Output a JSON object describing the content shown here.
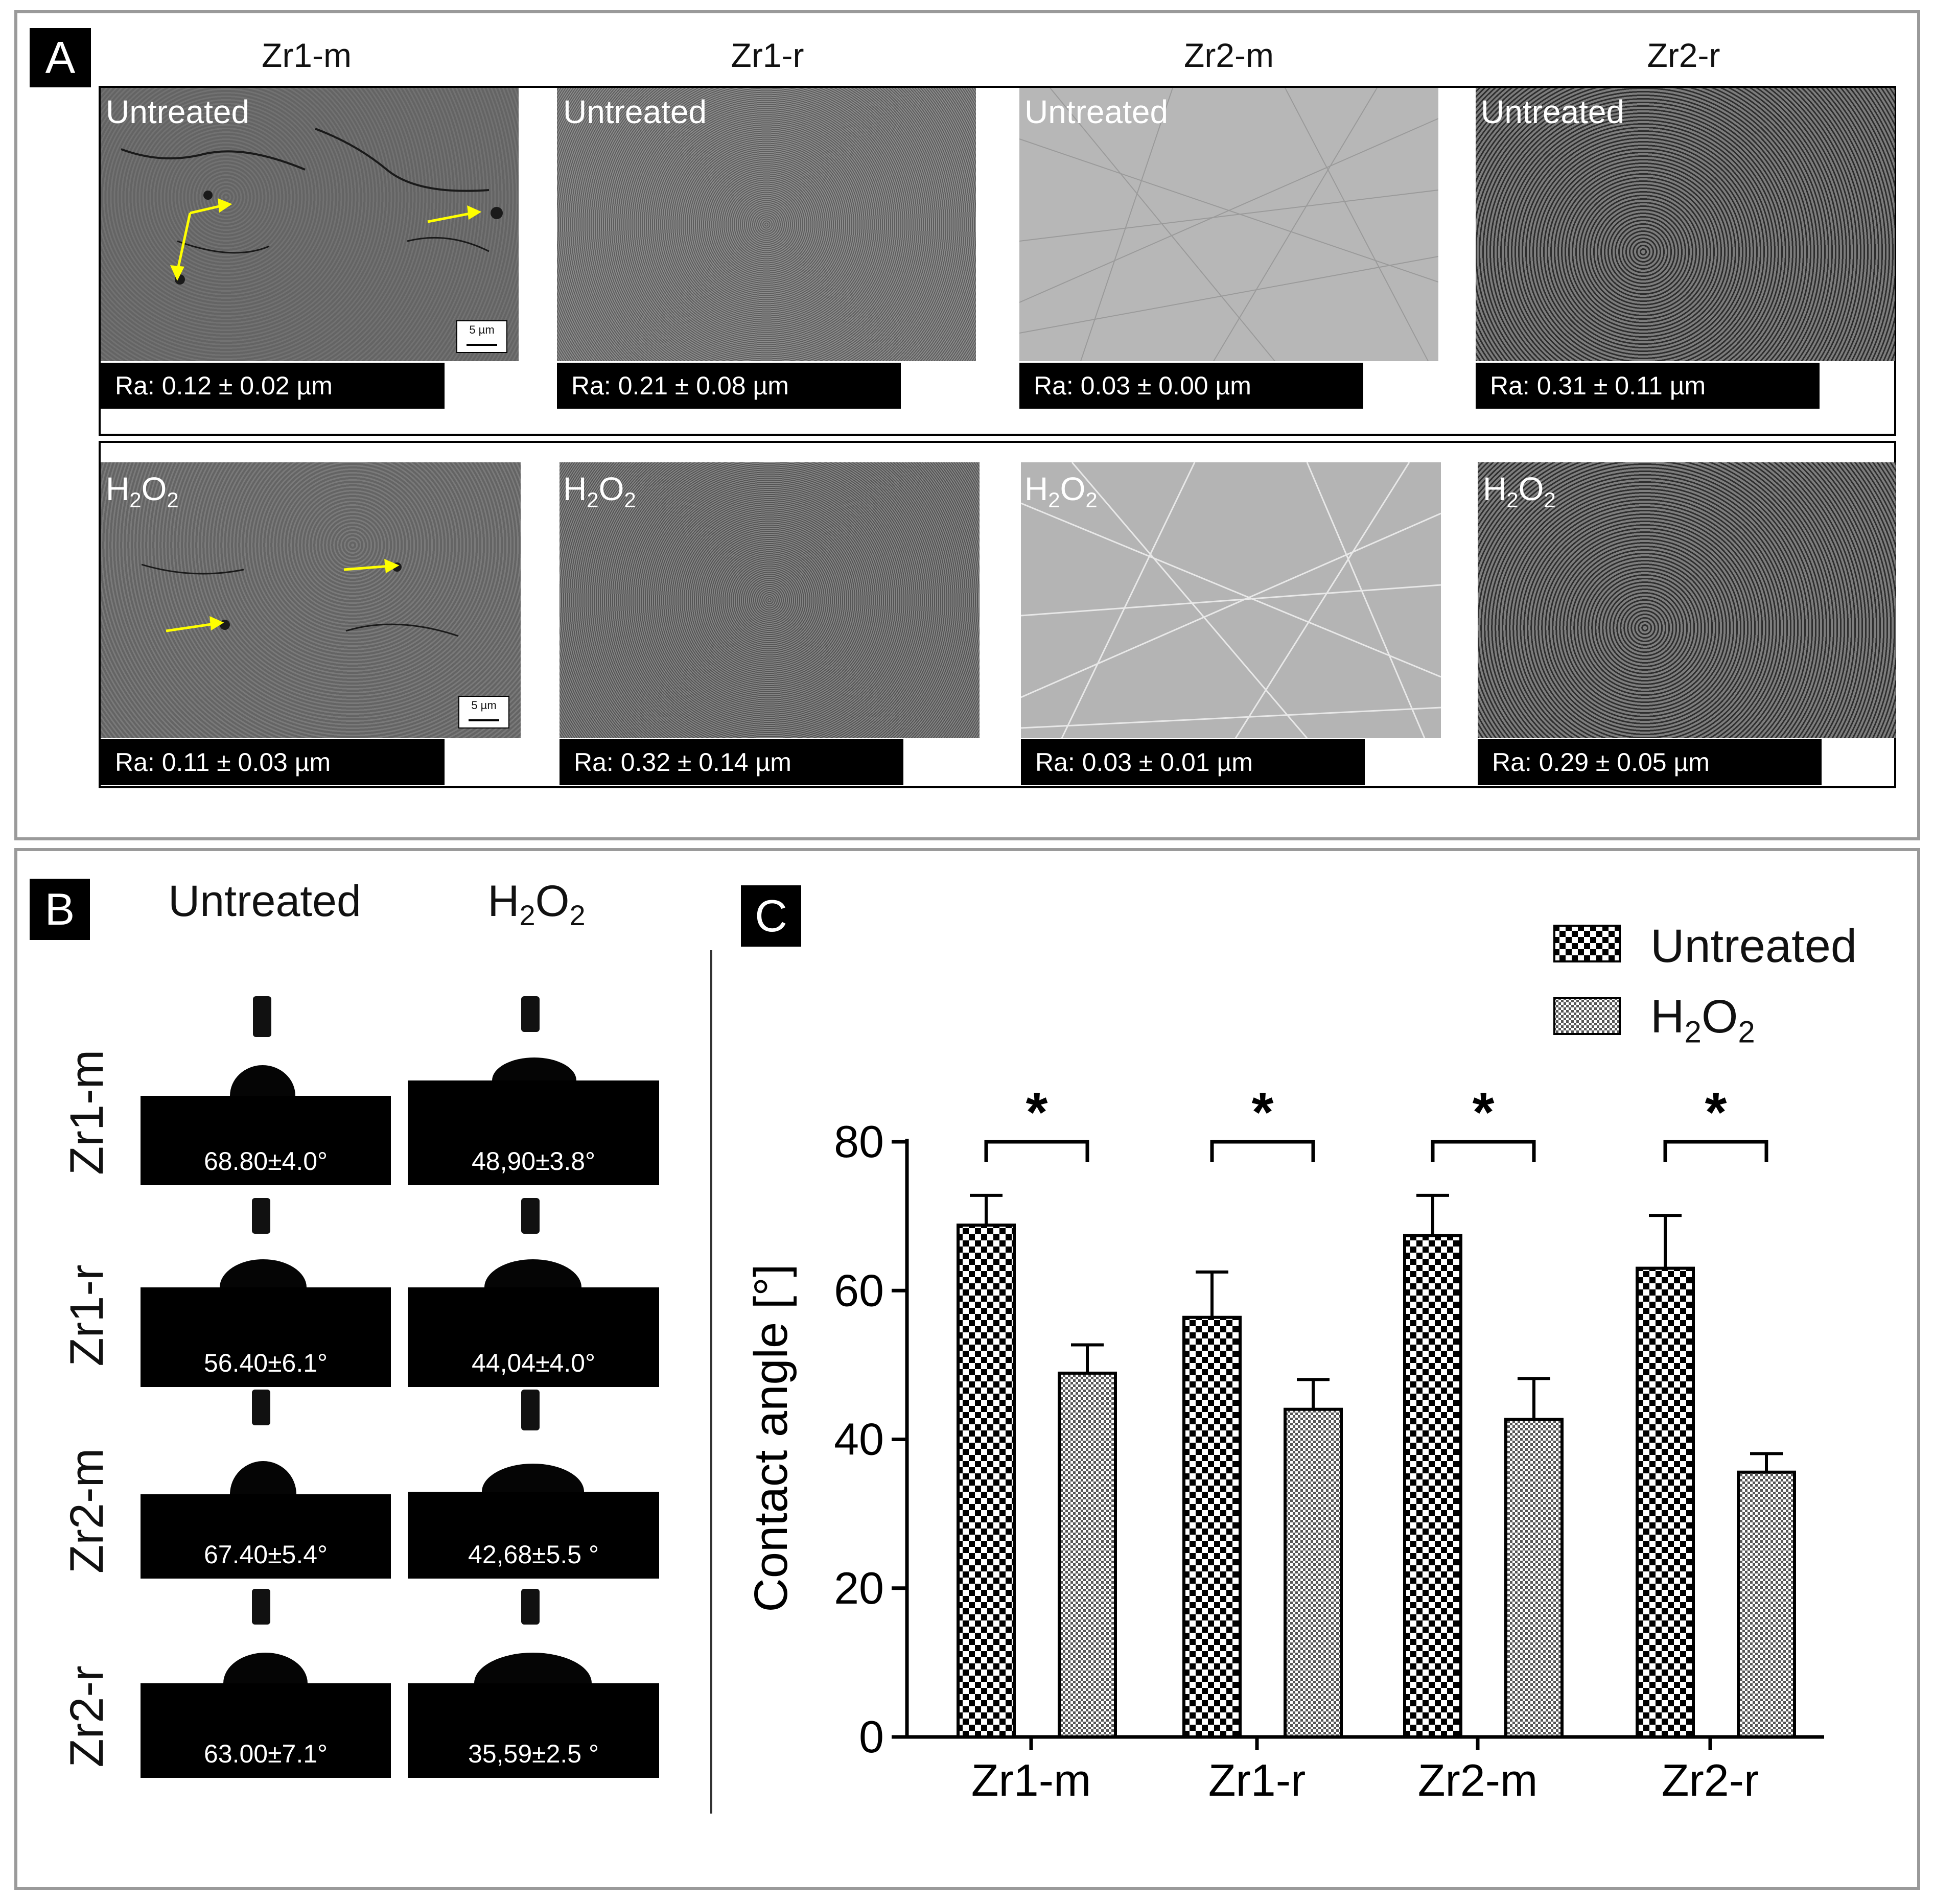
{
  "panelA": {
    "letter": "A",
    "columns": [
      "Zr1-m",
      "Zr1-r",
      "Zr2-m",
      "Zr2-r"
    ],
    "untreated_label": "Untreated",
    "h2o2_label_main": "H",
    "h2o2_sub1": "2",
    "h2o2_mid": "O",
    "h2o2_sub2": "2",
    "scale_bar": "5 µm",
    "untreated_ra": [
      "Ra: 0.12 ± 0.02 µm",
      "Ra: 0.21 ± 0.08 µm",
      "Ra: 0.03 ± 0.00 µm",
      "Ra: 0.31 ± 0.11 µm"
    ],
    "h2o2_ra": [
      "Ra: 0.11 ± 0.03 µm",
      "Ra: 0.32 ± 0.14 µm",
      "Ra: 0.03 ± 0.01 µm",
      "Ra: 0.29 ± 0.05 µm"
    ],
    "arrow_color": "#ffff00"
  },
  "panelB": {
    "letter": "B",
    "col_untreated": "Untreated",
    "col_h2o2_main": "H",
    "col_h2o2_sub1": "2",
    "col_h2o2_mid": "O",
    "col_h2o2_sub2": "2",
    "rows": [
      {
        "label": "Zr1-m",
        "untreated": "68.80±4.0°",
        "h2o2": "48,90±3.8°"
      },
      {
        "label": "Zr1-r",
        "untreated": "56.40±6.1°",
        "h2o2": "44,04±4.0°"
      },
      {
        "label": "Zr2-m",
        "untreated": "67.40±5.4°",
        "h2o2": "42,68±5.5 °"
      },
      {
        "label": "Zr2-r",
        "untreated": "63.00±7.1°",
        "h2o2": "35,59±2.5 °"
      }
    ]
  },
  "panelC": {
    "letter": "C",
    "legend_untreated": "Untreated",
    "legend_h2o2_main": "H",
    "legend_h2o2_sub1": "2",
    "legend_h2o2_mid": "O",
    "legend_h2o2_sub2": "2"
  },
  "chart_data": {
    "type": "bar",
    "categories": [
      "Zr1-m",
      "Zr1-r",
      "Zr2-m",
      "Zr2-r"
    ],
    "series": [
      {
        "name": "Untreated",
        "values": [
          68.8,
          56.4,
          67.4,
          63.0
        ],
        "errors": [
          4.0,
          6.1,
          5.4,
          7.1
        ]
      },
      {
        "name": "H2O2",
        "values": [
          48.9,
          44.04,
          42.68,
          35.59
        ],
        "errors": [
          3.8,
          4.0,
          5.5,
          2.5
        ]
      }
    ],
    "ylabel": "Contact angle [°]",
    "xlabel": "",
    "ylim": [
      0,
      80
    ],
    "yticks": [
      "0",
      "20",
      "40",
      "60",
      "80"
    ],
    "significance": [
      "*",
      "*",
      "*",
      "*"
    ]
  }
}
